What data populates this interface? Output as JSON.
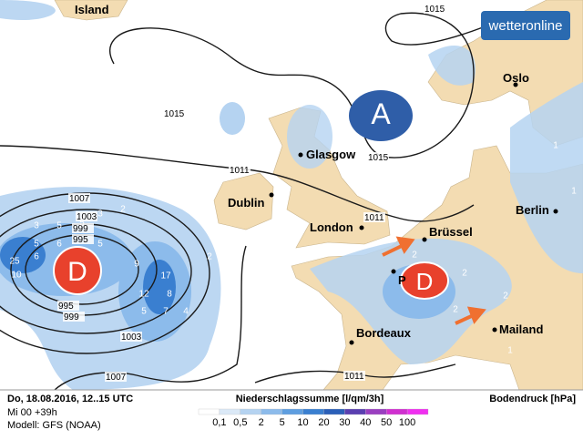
{
  "logo": "wetteronline",
  "cities": [
    "Island",
    "Oslo",
    "Glasgow",
    "Dublin",
    "London",
    "Brüssel",
    "Berlin",
    "P",
    "Bordeaux",
    "Mailand"
  ],
  "pressure_centers": [
    "A",
    "D",
    "D"
  ],
  "isobar_labels": [
    "1015",
    "1015",
    "1015",
    "1011",
    "1011",
    "1011",
    "1007",
    "1007",
    "1003",
    "1003",
    "999",
    "999",
    "995",
    "995"
  ],
  "precipitation_labels": [
    "3",
    "5",
    "5",
    "3",
    "2",
    "5",
    "6",
    "6",
    "5",
    "25",
    "10",
    "9",
    "17",
    "12",
    "8",
    "5",
    "7",
    "4",
    "2",
    "1",
    "2",
    "2",
    "2",
    "2",
    "1",
    "1",
    "1"
  ],
  "footer": {
    "date": "Do, 18.08.2016, 12..15 UTC",
    "run": "Mi 00 +39h",
    "model": "Modell: GFS (NOAA)",
    "legend_title": "Niederschlagssumme [l/qm/3h]",
    "legend_labels": [
      "0,1",
      "0,5",
      "2",
      "5",
      "10",
      "20",
      "30",
      "40",
      "50",
      "100"
    ],
    "legend_colors": [
      "#ffffff",
      "#dbe9f7",
      "#b5d3f1",
      "#8cbbeb",
      "#5e9ee0",
      "#3a7fd0",
      "#2a5fb8",
      "#5a3fb0",
      "#9a3fc0",
      "#d030d0",
      "#f030f0"
    ],
    "pressure_unit": "Bodendruck [hPa]"
  }
}
